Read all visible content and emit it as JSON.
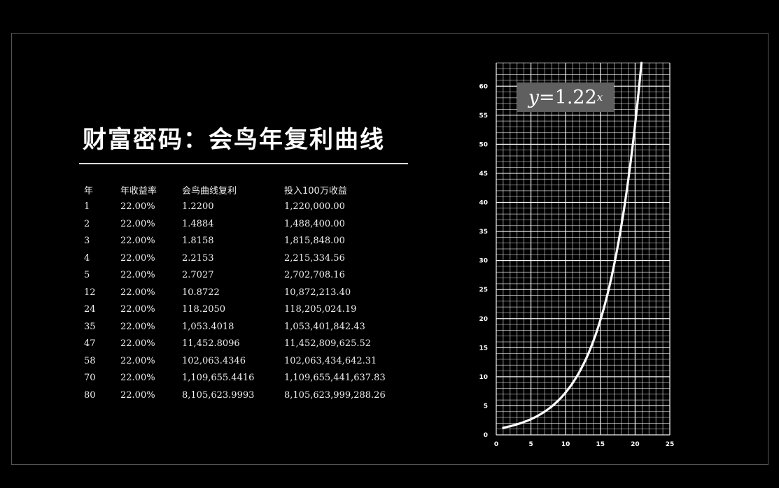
{
  "title": "财富密码：会鸟年复利曲线",
  "table": {
    "headers": [
      "年",
      "年收益率",
      "会鸟曲线复利",
      "投入100万收益"
    ],
    "rows": [
      [
        "1",
        "22.00%",
        "1.2200",
        "1,220,000.00"
      ],
      [
        "2",
        "22.00%",
        "1.4884",
        "1,488,400.00"
      ],
      [
        "3",
        "22.00%",
        "1.8158",
        "1,815,848.00"
      ],
      [
        "4",
        "22.00%",
        "2.2153",
        "2,215,334.56"
      ],
      [
        "5",
        "22.00%",
        "2.7027",
        "2,702,708.16"
      ],
      [
        "12",
        "22.00%",
        "10.8722",
        "10,872,213.40"
      ],
      [
        "24",
        "22.00%",
        "118.2050",
        "118,205,024.19"
      ],
      [
        "35",
        "22.00%",
        "1,053.4018",
        "1,053,401,842.43"
      ],
      [
        "47",
        "22.00%",
        "11,452.8096",
        "11,452,809,625.52"
      ],
      [
        "58",
        "22.00%",
        "102,063.4346",
        "102,063,434,642.31"
      ],
      [
        "70",
        "22.00%",
        "1,109,655.4416",
        "1,109,655,441,637.83"
      ],
      [
        "80",
        "22.00%",
        "8,105,623.9993",
        "8,105,623,999,288.26"
      ]
    ]
  },
  "chart_data": {
    "type": "line",
    "equation": {
      "lhs": "y",
      "eq": " = ",
      "base": "1.22",
      "exp": "x"
    },
    "function": {
      "base": 1.22,
      "x_start": 1
    },
    "xlim": [
      0,
      25
    ],
    "ylim": [
      0,
      64
    ],
    "x_ticks": [
      0,
      5,
      10,
      15,
      20,
      25
    ],
    "y_ticks": [
      0,
      5,
      10,
      15,
      20,
      25,
      30,
      35,
      40,
      45,
      50,
      55,
      60
    ],
    "x_minor_step": 1,
    "y_minor_step": 1,
    "grid": true,
    "colors": {
      "background": "#000000",
      "grid": "#ffffff",
      "curve": "#ffffff",
      "axis_text": "#ffffff"
    }
  }
}
